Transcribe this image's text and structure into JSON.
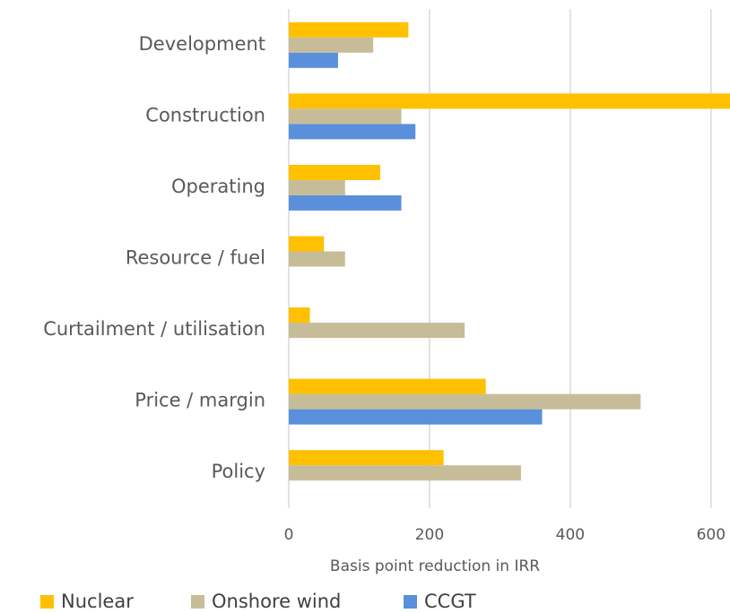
{
  "chart_data": {
    "type": "barh",
    "x_label": "Basis point reduction in IRR",
    "categories": [
      "Development",
      "Construction",
      "Operating",
      "Resource / fuel",
      "Curtailment / utilisation",
      "Price / margin",
      "Policy"
    ],
    "series": [
      {
        "name": "Nuclear",
        "color": "#ffc000",
        "values": [
          170,
          627,
          130,
          50,
          30,
          280,
          220
        ]
      },
      {
        "name": "Onshore wind",
        "color": "#c6bd98",
        "values": [
          120,
          160,
          80,
          80,
          250,
          500,
          330
        ]
      },
      {
        "name": "CCGT",
        "color": "#5a8fdb",
        "values": [
          70,
          180,
          160,
          null,
          null,
          360,
          null
        ]
      }
    ],
    "xlim": [
      0,
      627
    ],
    "xticks": [
      0,
      200,
      400,
      600
    ],
    "grid": true,
    "legend": "bottom"
  }
}
